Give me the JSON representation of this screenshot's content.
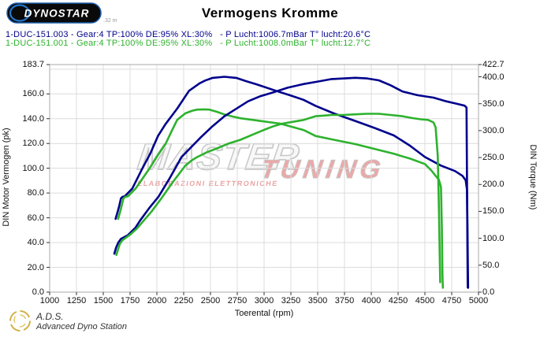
{
  "header": {
    "logo_text": "DYNOSTAR",
    "logo_subtext": ".32 m",
    "title": "Vermogens Kromme"
  },
  "legend": {
    "runs": [
      {
        "color": "#00008c",
        "text": "1-DUC-151.003 - Gear:4 TP:100% DE:95% XL:30%   - P Lucht:1006.7mBar T° lucht:20.6°C"
      },
      {
        "color": "#2db22d",
        "text": "1-DUC-151.001 - Gear:4 TP:100% DE:95% XL:30%   - P Lucht:1008.0mBar T° lucht:12.7°C"
      }
    ]
  },
  "watermark": {
    "word1": "MASTER",
    "word2": "TUNING",
    "caption": "ELABORAZIONI ELETTRONICHE"
  },
  "footer": {
    "abbr": "A.D.S.",
    "full": "Advanced Dyno Station"
  },
  "chart_data": {
    "type": "line",
    "title": "Vermogens Kromme",
    "xlabel": "Toerental (rpm)",
    "ylabel_left": "DIN Motor Vermogen (pk)",
    "ylabel_right": "DIN Torque (Nm)",
    "x_range": [
      1000,
      5000
    ],
    "x_tick_step": 250,
    "y_left_range": [
      0,
      183.7
    ],
    "y_left_ticks": [
      183.7,
      160,
      140,
      120,
      100,
      80,
      60,
      40,
      20,
      0
    ],
    "y_right_range": [
      0,
      422.7
    ],
    "y_right_ticks": [
      422.7,
      400,
      350,
      300,
      250,
      200,
      150,
      100,
      50,
      0
    ],
    "grid": {
      "vertical_step_rpm": 250,
      "horizontal_step_pk": 20,
      "on": true
    },
    "legend_position": "top-left",
    "series": [
      {
        "name": "1-DUC-151.003 koppel (Nm)",
        "axis": "right",
        "color": "#00008c",
        "points": [
          [
            1615,
            136
          ],
          [
            1635,
            150
          ],
          [
            1650,
            161
          ],
          [
            1665,
            174
          ],
          [
            1680,
            177
          ],
          [
            1700,
            178
          ],
          [
            1770,
            192
          ],
          [
            1860,
            228
          ],
          [
            1940,
            258
          ],
          [
            2010,
            290
          ],
          [
            2080,
            312
          ],
          [
            2190,
            341
          ],
          [
            2300,
            374
          ],
          [
            2400,
            388
          ],
          [
            2450,
            393
          ],
          [
            2520,
            398
          ],
          [
            2630,
            400
          ],
          [
            2740,
            398
          ],
          [
            2830,
            392
          ],
          [
            2930,
            386
          ],
          [
            3110,
            374
          ],
          [
            3250,
            365
          ],
          [
            3370,
            357
          ],
          [
            3480,
            346
          ],
          [
            3650,
            332
          ],
          [
            3850,
            318
          ],
          [
            4030,
            305
          ],
          [
            4210,
            291
          ],
          [
            4360,
            272
          ],
          [
            4500,
            251
          ],
          [
            4650,
            235
          ],
          [
            4780,
            225
          ],
          [
            4850,
            216
          ],
          [
            4880,
            208
          ],
          [
            4893,
            190
          ],
          [
            4897,
            120
          ],
          [
            4900,
            60
          ],
          [
            4903,
            8
          ]
        ]
      },
      {
        "name": "1-DUC-151.001 koppel (Nm)",
        "axis": "right",
        "color": "#2db22d",
        "points": [
          [
            1638,
            136
          ],
          [
            1658,
            150
          ],
          [
            1672,
            161
          ],
          [
            1688,
            174
          ],
          [
            1705,
            177
          ],
          [
            1730,
            178
          ],
          [
            1800,
            192
          ],
          [
            1880,
            215
          ],
          [
            1935,
            231
          ],
          [
            2010,
            255
          ],
          [
            2080,
            275
          ],
          [
            2140,
            300
          ],
          [
            2190,
            320
          ],
          [
            2265,
            332
          ],
          [
            2330,
            337
          ],
          [
            2375,
            339
          ],
          [
            2440,
            339.5
          ],
          [
            2490,
            339
          ],
          [
            2560,
            335
          ],
          [
            2630,
            330
          ],
          [
            2710,
            326
          ],
          [
            2780,
            323
          ],
          [
            2930,
            319
          ],
          [
            3040,
            316
          ],
          [
            3150,
            313
          ],
          [
            3260,
            307
          ],
          [
            3370,
            301
          ],
          [
            3480,
            290
          ],
          [
            3650,
            283
          ],
          [
            3850,
            275
          ],
          [
            4030,
            266
          ],
          [
            4210,
            257
          ],
          [
            4360,
            248
          ],
          [
            4500,
            238
          ],
          [
            4560,
            226
          ],
          [
            4600,
            216
          ],
          [
            4630,
            209
          ],
          [
            4650,
            195
          ],
          [
            4658,
            120
          ],
          [
            4662,
            60
          ],
          [
            4664,
            30
          ],
          [
            4668,
            8
          ]
        ]
      },
      {
        "name": "1-DUC-151.003 vermogen (pk)",
        "axis": "left",
        "color": "#00008c",
        "points": [
          [
            1603,
            31
          ],
          [
            1620,
            36
          ],
          [
            1640,
            40
          ],
          [
            1665,
            43
          ],
          [
            1730,
            46
          ],
          [
            1800,
            52
          ],
          [
            1845,
            58
          ],
          [
            1930,
            68
          ],
          [
            2015,
            77
          ],
          [
            2120,
            92
          ],
          [
            2230,
            109
          ],
          [
            2320,
            117
          ],
          [
            2410,
            125
          ],
          [
            2520,
            134
          ],
          [
            2630,
            142
          ],
          [
            2740,
            148
          ],
          [
            2850,
            154
          ],
          [
            2960,
            158
          ],
          [
            3075,
            161
          ],
          [
            3220,
            165
          ],
          [
            3370,
            168
          ],
          [
            3500,
            170
          ],
          [
            3630,
            172
          ],
          [
            3750,
            172.5
          ],
          [
            3850,
            173
          ],
          [
            3960,
            172.5
          ],
          [
            4070,
            171
          ],
          [
            4180,
            167
          ],
          [
            4290,
            162
          ],
          [
            4430,
            159
          ],
          [
            4580,
            157
          ],
          [
            4700,
            154
          ],
          [
            4800,
            152
          ],
          [
            4870,
            150.5
          ],
          [
            4888,
            149
          ],
          [
            4892,
            100
          ],
          [
            4896,
            40
          ],
          [
            4899,
            4
          ]
        ]
      },
      {
        "name": "1-DUC-151.001 vermogen (pk)",
        "axis": "left",
        "color": "#2db22d",
        "points": [
          [
            1622,
            30
          ],
          [
            1640,
            35
          ],
          [
            1655,
            39
          ],
          [
            1680,
            42
          ],
          [
            1745,
            46
          ],
          [
            1810,
            51
          ],
          [
            1860,
            56
          ],
          [
            1950,
            65
          ],
          [
            2045,
            76
          ],
          [
            2150,
            89
          ],
          [
            2265,
            102
          ],
          [
            2320,
            106
          ],
          [
            2375,
            109
          ],
          [
            2470,
            113
          ],
          [
            2560,
            116
          ],
          [
            2670,
            120
          ],
          [
            2780,
            123
          ],
          [
            2890,
            127
          ],
          [
            3000,
            131
          ],
          [
            3090,
            134
          ],
          [
            3170,
            136
          ],
          [
            3270,
            137.5
          ],
          [
            3370,
            139
          ],
          [
            3480,
            142
          ],
          [
            3560,
            142.5
          ],
          [
            3630,
            143
          ],
          [
            3740,
            143
          ],
          [
            3850,
            143.5
          ],
          [
            3960,
            144
          ],
          [
            4070,
            144
          ],
          [
            4180,
            143
          ],
          [
            4290,
            142
          ],
          [
            4385,
            140.5
          ],
          [
            4460,
            139.5
          ],
          [
            4530,
            139
          ],
          [
            4580,
            137
          ],
          [
            4600,
            133
          ],
          [
            4620,
            110
          ],
          [
            4630,
            70
          ],
          [
            4638,
            30
          ],
          [
            4643,
            8
          ]
        ]
      }
    ]
  }
}
